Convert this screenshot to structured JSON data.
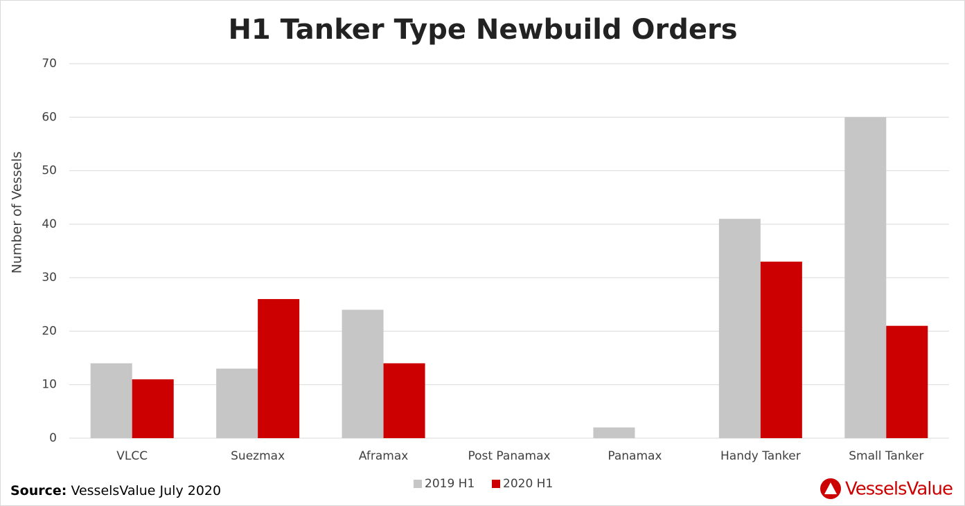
{
  "chart_data": {
    "type": "bar",
    "title": "H1 Tanker Type Newbuild Orders",
    "y_label": "Number of Vessels",
    "categories": [
      "VLCC",
      "Suezmax",
      "Aframax",
      "Post Panamax",
      "Panamax",
      "Handy Tanker",
      "Small Tanker"
    ],
    "series": [
      {
        "name": "2019 H1",
        "color": "#c6c6c6",
        "values": [
          14,
          13,
          24,
          0,
          2,
          41,
          60
        ]
      },
      {
        "name": "2020 H1",
        "color": "#cc0000",
        "values": [
          11,
          26,
          14,
          0,
          0,
          33,
          21
        ]
      }
    ],
    "ylim": [
      0,
      70
    ],
    "yticks": [
      0,
      10,
      20,
      30,
      40,
      50,
      60,
      70
    ],
    "grid": true,
    "legend": "bottom",
    "source_label": "Source:",
    "source_text": "VesselsValue July 2020",
    "logo": "VesselsValue"
  }
}
